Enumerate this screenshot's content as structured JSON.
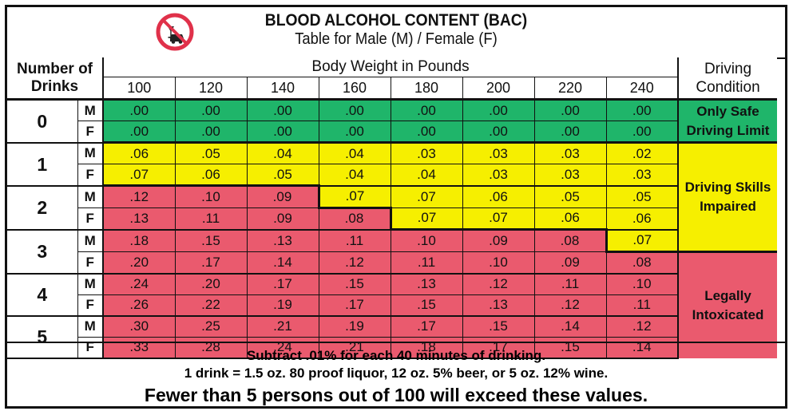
{
  "header": {
    "title": "BLOOD ALCOHOL CONTENT (BAC)",
    "subtitle": "Table for Male (M) / Female (F)",
    "logo_icon": "no-drinking-and-driving-icon"
  },
  "table": {
    "number_header_line1": "Number of",
    "number_header_line2": "Drinks",
    "body_weight_header": "Body Weight in Pounds",
    "condition_header_line1": "Driving",
    "condition_header_line2": "Condition",
    "weights": [
      "100",
      "120",
      "140",
      "160",
      "180",
      "200",
      "220",
      "240"
    ],
    "rows": [
      {
        "drinks": "0",
        "sex": "M",
        "values": [
          ".00",
          ".00",
          ".00",
          ".00",
          ".00",
          ".00",
          ".00",
          ".00"
        ]
      },
      {
        "drinks": "0",
        "sex": "F",
        "values": [
          ".00",
          ".00",
          ".00",
          ".00",
          ".00",
          ".00",
          ".00",
          ".00"
        ]
      },
      {
        "drinks": "1",
        "sex": "M",
        "values": [
          ".06",
          ".05",
          ".04",
          ".04",
          ".03",
          ".03",
          ".03",
          ".02"
        ]
      },
      {
        "drinks": "1",
        "sex": "F",
        "values": [
          ".07",
          ".06",
          ".05",
          ".04",
          ".04",
          ".03",
          ".03",
          ".03"
        ]
      },
      {
        "drinks": "2",
        "sex": "M",
        "values": [
          ".12",
          ".10",
          ".09",
          ".07",
          ".07",
          ".06",
          ".05",
          ".05"
        ]
      },
      {
        "drinks": "2",
        "sex": "F",
        "values": [
          ".13",
          ".11",
          ".09",
          ".08",
          ".07",
          ".07",
          ".06",
          ".06"
        ]
      },
      {
        "drinks": "3",
        "sex": "M",
        "values": [
          ".18",
          ".15",
          ".13",
          ".11",
          ".10",
          ".09",
          ".08",
          ".07"
        ]
      },
      {
        "drinks": "3",
        "sex": "F",
        "values": [
          ".20",
          ".17",
          ".14",
          ".12",
          ".11",
          ".10",
          ".09",
          ".08"
        ]
      },
      {
        "drinks": "4",
        "sex": "M",
        "values": [
          ".24",
          ".20",
          ".17",
          ".15",
          ".13",
          ".12",
          ".11",
          ".10"
        ]
      },
      {
        "drinks": "4",
        "sex": "F",
        "values": [
          ".26",
          ".22",
          ".19",
          ".17",
          ".15",
          ".13",
          ".12",
          ".11"
        ]
      },
      {
        "drinks": "5",
        "sex": "M",
        "values": [
          ".30",
          ".25",
          ".21",
          ".19",
          ".17",
          ".15",
          ".14",
          ".12"
        ]
      },
      {
        "drinks": "5",
        "sex": "F",
        "values": [
          ".33",
          ".28",
          ".24",
          ".21",
          ".18",
          ".17",
          ".15",
          ".14"
        ]
      }
    ],
    "conditions": {
      "safe": "Only Safe Driving Limit",
      "impaired": "Driving Skills Impaired",
      "intoxicated": "Legally Intoxicated"
    },
    "colors": {
      "safe": "#1fb56a",
      "impaired": "#f6ef00",
      "intoxicated": "#ea5a6e"
    }
  },
  "footer": {
    "note1": "Subtract .01% for each 40 minutes of drinking.",
    "note2": "1 drink = 1.5 oz. 80 proof liquor, 12 oz. 5% beer, or 5 oz. 12% wine.",
    "note3": "Fewer than 5 persons out of 100 will exceed these values."
  }
}
